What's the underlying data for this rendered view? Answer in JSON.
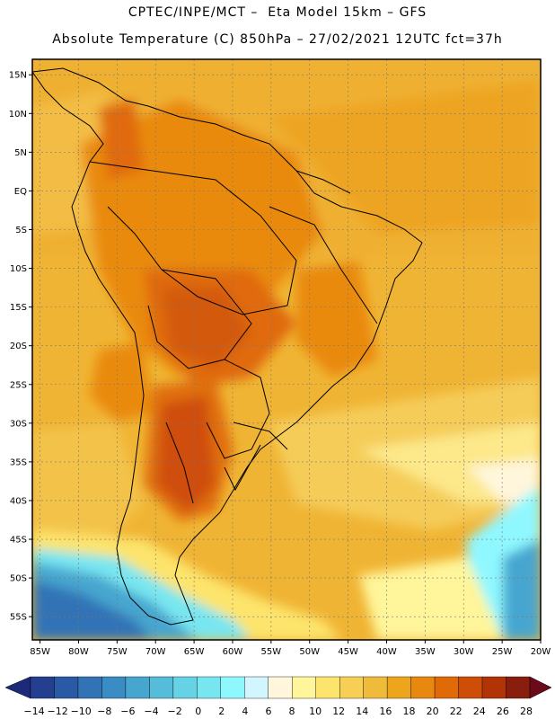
{
  "header": {
    "line1": "CPTEC/INPE/MCT –  Eta Model 15km – GFS",
    "line2": "Absolute Temperature (C) 850hPa – 27/02/2021 12UTC fct=37h"
  },
  "map": {
    "lat_labels": [
      "15N",
      "10N",
      "5N",
      "EQ",
      "5S",
      "10S",
      "15S",
      "20S",
      "25S",
      "30S",
      "35S",
      "40S",
      "45S",
      "50S",
      "55S"
    ],
    "lat_values": [
      15,
      10,
      5,
      0,
      -5,
      -10,
      -15,
      -20,
      -25,
      -30,
      -35,
      -40,
      -45,
      -50,
      -55
    ],
    "lon_labels": [
      "85W",
      "80W",
      "75W",
      "70W",
      "65W",
      "60W",
      "55W",
      "50W",
      "45W",
      "40W",
      "35W",
      "30W",
      "25W",
      "20W"
    ],
    "lon_values": [
      -85,
      -80,
      -75,
      -70,
      -65,
      -60,
      -55,
      -50,
      -45,
      -40,
      -35,
      -30,
      -25,
      -20
    ],
    "lat_range": [
      -58,
      17
    ],
    "lon_range": [
      -86,
      -20
    ]
  },
  "colorbar": {
    "labels": [
      "-14",
      "-12",
      "-10",
      "-8",
      "-6",
      "-4",
      "-2",
      "0",
      "2",
      "4",
      "6",
      "8",
      "10",
      "12",
      "14",
      "16",
      "18",
      "20",
      "22",
      "24",
      "26",
      "28"
    ],
    "colors": [
      "#243f8f",
      "#2a5aa6",
      "#3273b6",
      "#3a8dc4",
      "#47a6cf",
      "#55bcd9",
      "#66d2e6",
      "#78e6f0",
      "#8ff8ff",
      "#d2f6ff",
      "#fff6dc",
      "#fff59a",
      "#fde46c",
      "#f7cf54",
      "#f0bb3a",
      "#eda51c",
      "#e9880e",
      "#e06a07",
      "#cf4e07",
      "#b23306",
      "#8a1e0e"
    ],
    "under_color": "#1d2a7a",
    "over_color": "#6a0a1a"
  }
}
